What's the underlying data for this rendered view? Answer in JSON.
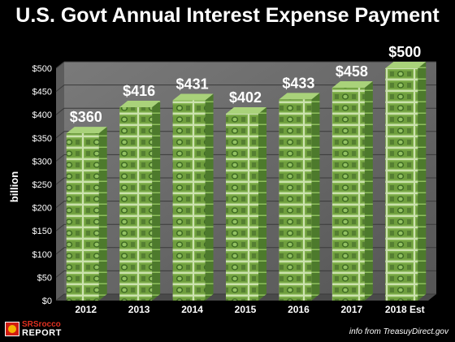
{
  "chart_data": {
    "type": "bar",
    "title": "U.S. Govt Annual Interest Expense Payment",
    "categories": [
      "2012",
      "2013",
      "2014",
      "2015",
      "2016",
      "2017",
      "2018 Est"
    ],
    "values": [
      360,
      416,
      431,
      402,
      433,
      458,
      500
    ],
    "data_labels": [
      "$360",
      "$416",
      "$431",
      "$402",
      "$433",
      "$458",
      "$500"
    ],
    "ylabel": "billion",
    "xlabel": "",
    "ylim": [
      0,
      500
    ],
    "yticks": [
      0,
      50,
      100,
      150,
      200,
      250,
      300,
      350,
      400,
      450,
      500
    ],
    "ytick_labels": [
      "$0",
      "$50",
      "$100",
      "$150",
      "$200",
      "$250",
      "$300",
      "$350",
      "$400",
      "$450",
      "$500"
    ],
    "grid": true,
    "legend": "none"
  },
  "branding": {
    "logo_line1": "SRSrocco",
    "logo_line2": "REPORT"
  },
  "source_note": "info from TreasuyDirect.gov",
  "colors": {
    "background": "#000000",
    "bar_money": "#7fae4a",
    "bar_money_dark": "#3f6a22",
    "plot_wall": "#6e6e6e",
    "text": "#ffffff"
  }
}
